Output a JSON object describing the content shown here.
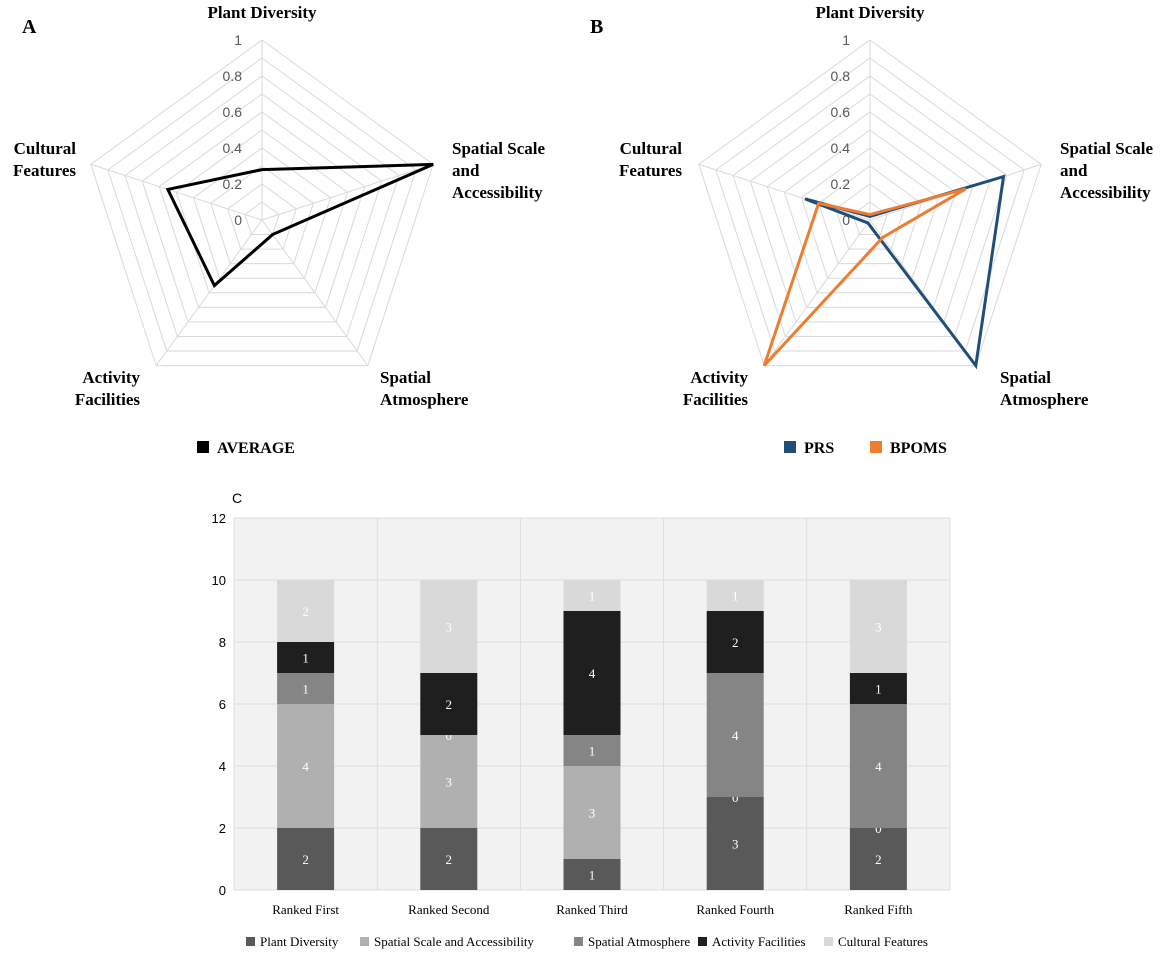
{
  "chart_data": [
    {
      "type": "radar",
      "panel_label": "A",
      "axes": [
        "Plant Diversity",
        "Spatial Scale and Accessibility",
        "Spatial Atmosphere",
        "Activity Facilities",
        "Cultural Features"
      ],
      "axis_label_lines": [
        [
          "Plant Diversity"
        ],
        [
          "Spatial Scale",
          "and",
          "Accessibility"
        ],
        [
          "Spatial",
          "Atmosphere"
        ],
        [
          "Activity",
          "Facilities"
        ],
        [
          "Cultural",
          "Features"
        ]
      ],
      "range": [
        0,
        1
      ],
      "ticks": [
        "0",
        "0.2",
        "0.4",
        "0.6",
        "0.8",
        "1"
      ],
      "series": [
        {
          "name": "AVERAGE",
          "color": "#000000",
          "values": [
            0.28,
            1.0,
            0.1,
            0.45,
            0.55
          ]
        }
      ]
    },
    {
      "type": "radar",
      "panel_label": "B",
      "axes": [
        "Plant Diversity",
        "Spatial Scale and Accessibility",
        "Spatial Atmosphere",
        "Activity Facilities",
        "Cultural Features"
      ],
      "axis_label_lines": [
        [
          "Plant Diversity"
        ],
        [
          "Spatial Scale",
          "and",
          "Accessibility"
        ],
        [
          "Spatial",
          "Atmosphere"
        ],
        [
          "Activity",
          "Facilities"
        ],
        [
          "Cultural",
          "Features"
        ]
      ],
      "range": [
        0,
        1
      ],
      "ticks": [
        "0",
        "0.2",
        "0.4",
        "0.6",
        "0.8",
        "1"
      ],
      "series": [
        {
          "name": "PRS",
          "color": "#1f4e79",
          "values": [
            0.02,
            0.78,
            1.0,
            0.02,
            0.38
          ]
        },
        {
          "name": "BPOMS",
          "color": "#ed7d31",
          "values": [
            0.03,
            0.56,
            0.12,
            1.0,
            0.3
          ]
        }
      ]
    },
    {
      "type": "bar",
      "stacked": true,
      "panel_label": "C",
      "categories": [
        "Ranked First",
        "Ranked Second",
        "Ranked Third",
        "Ranked Fourth",
        "Ranked Fifth"
      ],
      "ylim": [
        0,
        12
      ],
      "yticks": [
        "0",
        "2",
        "4",
        "6",
        "8",
        "10",
        "12"
      ],
      "series": [
        {
          "name": "Plant Diversity",
          "color": "#595959",
          "label_color": "#ffffff",
          "values": [
            2,
            2,
            1,
            3,
            2
          ]
        },
        {
          "name": "Spatial Scale and Accessibility",
          "color": "#b0b0b0",
          "label_color": "#ffffff",
          "values": [
            4,
            3,
            3,
            0,
            0
          ]
        },
        {
          "name": "Spatial Atmosphere",
          "color": "#858585",
          "label_color": "#ffffff",
          "values": [
            1,
            0,
            1,
            4,
            4
          ]
        },
        {
          "name": "Activity Facilities",
          "color": "#1f1f1f",
          "label_color": "#ffffff",
          "values": [
            1,
            2,
            4,
            2,
            1
          ]
        },
        {
          "name": "Cultural Features",
          "color": "#d9d9d9",
          "label_color": "#ffffff",
          "values": [
            2,
            3,
            1,
            1,
            3
          ]
        }
      ]
    }
  ]
}
